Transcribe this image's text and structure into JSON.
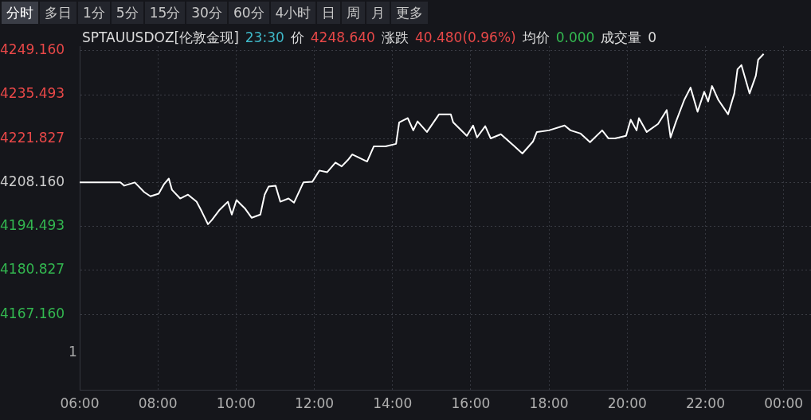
{
  "chart_data": {
    "type": "line",
    "title": "SPTAUUSDOZ[伦敦金现]",
    "subtitle": "23:30 价 4248.640 涨跌 40.480(0.96%) 均价 0.000 成交量 0",
    "annotations": [
      "分时",
      "多日",
      "1分",
      "5分",
      "15分",
      "30分",
      "60分",
      "4小时",
      "日",
      "周",
      "月",
      "更多",
      "1"
    ],
    "x": [
      6.0,
      6.94,
      7.04,
      7.14,
      7.41,
      7.65,
      7.81,
      8.02,
      8.16,
      8.28,
      8.36,
      8.57,
      8.77,
      8.99,
      9.1,
      9.28,
      9.38,
      9.58,
      9.79,
      9.89,
      10.01,
      10.22,
      10.4,
      10.62,
      10.73,
      10.83,
      11.01,
      11.13,
      11.34,
      11.48,
      11.72,
      11.95,
      12.13,
      12.33,
      12.54,
      12.7,
      12.86,
      12.97,
      13.35,
      13.52,
      13.82,
      14.09,
      14.17,
      14.39,
      14.53,
      14.64,
      14.88,
      15.19,
      15.49,
      15.55,
      15.9,
      16.06,
      16.16,
      16.37,
      16.51,
      16.77,
      17.12,
      17.32,
      17.59,
      17.69,
      18.0,
      18.4,
      18.55,
      18.81,
      19.05,
      19.36,
      19.52,
      19.69,
      19.97,
      20.09,
      20.24,
      20.3,
      20.5,
      20.79,
      21.01,
      21.11,
      21.25,
      21.46,
      21.62,
      21.8,
      21.97,
      22.07,
      22.17,
      22.33,
      22.58,
      22.74,
      22.82,
      22.92,
      23.13,
      23.29,
      23.35,
      23.49
    ],
    "series": [
      {
        "color": "#ffffff",
        "values": [
          4208.2,
          4208.2,
          4208.2,
          4207.2,
          4208.2,
          4205.2,
          4203.9,
          4204.7,
          4207.7,
          4209.4,
          4205.9,
          4203.2,
          4204.4,
          4202.2,
          4199.7,
          4195.2,
          4196.5,
          4199.7,
          4202.2,
          4198.2,
          4202.7,
          4200.2,
          4197.2,
          4198.2,
          4204.4,
          4206.9,
          4207.2,
          4202.2,
          4203.2,
          4201.9,
          4208.2,
          4208.4,
          4211.9,
          4211.4,
          4214.4,
          4213.2,
          4215.2,
          4216.9,
          4214.7,
          4219.4,
          4219.4,
          4220.2,
          4226.9,
          4228.2,
          4224.4,
          4227.2,
          4223.9,
          4229.4,
          4229.4,
          4226.9,
          4222.7,
          4225.9,
          4222.2,
          4225.7,
          4221.9,
          4223.2,
          4219.4,
          4217.2,
          4220.9,
          4223.9,
          4224.4,
          4225.9,
          4224.4,
          4223.4,
          4220.7,
          4224.4,
          4221.9,
          4221.9,
          4222.7,
          4227.7,
          4224.4,
          4228.2,
          4223.9,
          4226.4,
          4230.7,
          4222.2,
          4227.2,
          4233.9,
          4237.7,
          4230.2,
          4236.4,
          4233.4,
          4238.2,
          4233.9,
          4229.4,
          4235.9,
          4243.4,
          4244.7,
          4235.9,
          4241.4,
          4246.4,
          4248.2
        ]
      }
    ],
    "xlim": [
      6,
      24.7
    ],
    "xticks": [
      {
        "value": 6,
        "label": "06:00"
      },
      {
        "value": 8,
        "label": "08:00"
      },
      {
        "value": 10,
        "label": "10:00"
      },
      {
        "value": 12,
        "label": "12:00"
      },
      {
        "value": 14,
        "label": "14:00"
      },
      {
        "value": 16,
        "label": "16:00"
      },
      {
        "value": 18,
        "label": "18:00"
      },
      {
        "value": 20,
        "label": "20:00"
      },
      {
        "value": 22,
        "label": "22:00"
      },
      {
        "value": 24,
        "label": "00:00"
      }
    ],
    "ylim": [
      4143.7,
      4250.6
    ],
    "yticks": [
      {
        "value": 4167.16,
        "label": "4167.160"
      },
      {
        "value": 4180.827,
        "label": "4180.827"
      },
      {
        "value": 4194.493,
        "label": "4194.493"
      },
      {
        "value": 4208.16,
        "label": "4208.160"
      },
      {
        "value": 4221.827,
        "label": "4221.827"
      },
      {
        "value": 4235.493,
        "label": "4235.493"
      },
      {
        "value": 4249.16,
        "label": "4249.160"
      }
    ],
    "grid": true,
    "legend": false,
    "marker": "none",
    "line_style": "solid"
  }
}
